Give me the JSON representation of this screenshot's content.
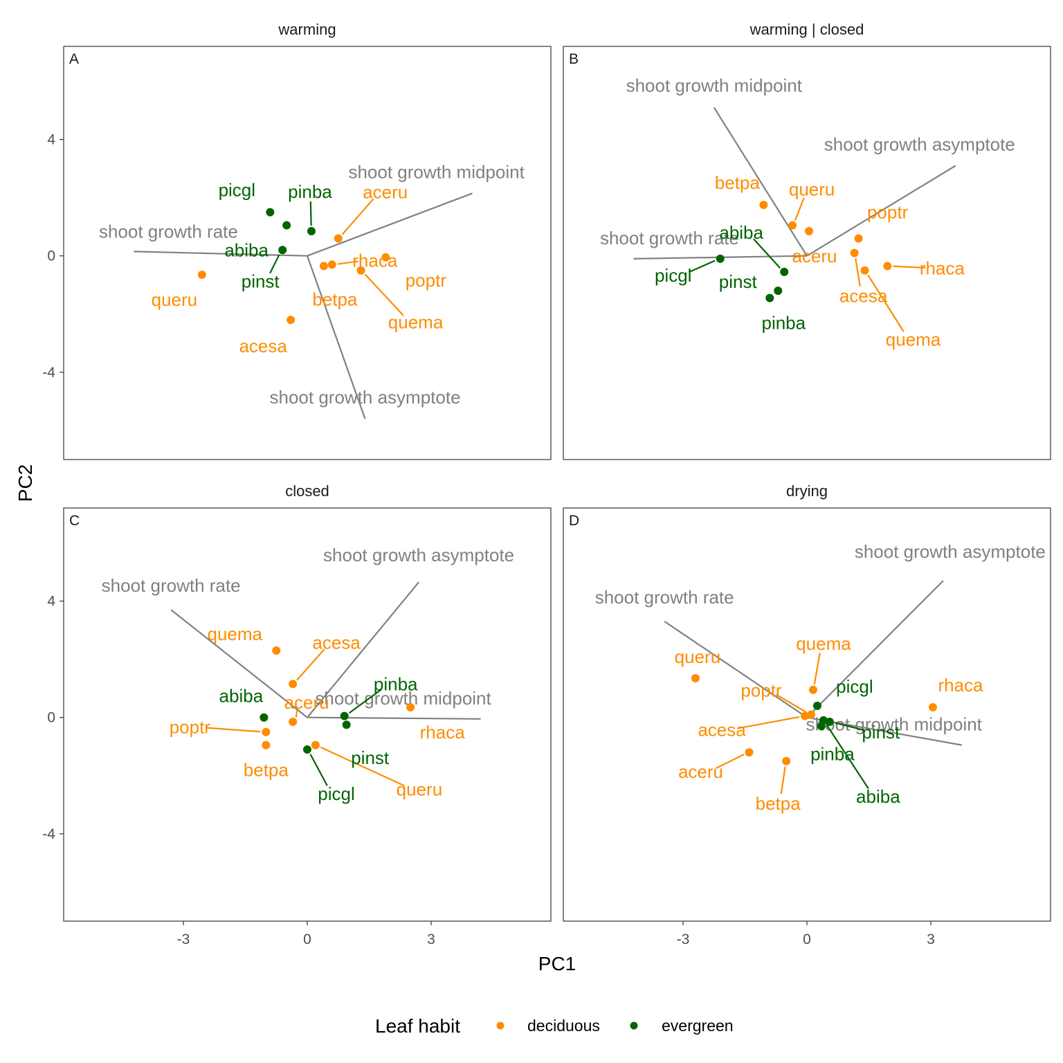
{
  "colors": {
    "deciduous": "#FF8C00",
    "evergreen": "#006400",
    "vector": "#808080",
    "panel_border": "#333333"
  },
  "axes": {
    "xlabel": "PC1",
    "ylabel": "PC2",
    "xlim": [
      -5.9,
      5.9
    ],
    "ylim": [
      -7.0,
      7.2
    ],
    "xticks": [
      -3,
      0,
      3
    ],
    "yticks": [
      -4,
      0,
      4
    ]
  },
  "legend": {
    "title": "Leaf habit",
    "position": "bottom",
    "items": [
      "deciduous",
      "evergreen"
    ]
  },
  "chart_data": [
    {
      "type": "scatter",
      "panel": "A",
      "title": "warming",
      "vectors": [
        {
          "label": "shoot growth rate",
          "x": -4.2,
          "y": 0.15
        },
        {
          "label": "shoot growth midpoint",
          "x": 4.0,
          "y": 2.15
        },
        {
          "label": "shoot growth asymptote",
          "x": 1.4,
          "y": -5.6
        }
      ],
      "points": [
        {
          "label": "picgl",
          "habit": "evergreen",
          "x": -0.9,
          "y": 1.5
        },
        {
          "label": "pinba",
          "habit": "evergreen",
          "x": 0.1,
          "y": 0.85
        },
        {
          "label": "abiba",
          "habit": "evergreen",
          "x": -0.5,
          "y": 1.05
        },
        {
          "label": "pinst",
          "habit": "evergreen",
          "x": -0.6,
          "y": 0.2
        },
        {
          "label": "aceru",
          "habit": "deciduous",
          "x": 0.75,
          "y": 0.6
        },
        {
          "label": "rhaca",
          "habit": "deciduous",
          "x": 0.6,
          "y": -0.3
        },
        {
          "label": "betpa",
          "habit": "deciduous",
          "x": 0.4,
          "y": -0.35
        },
        {
          "label": "poptr",
          "habit": "deciduous",
          "x": 1.9,
          "y": -0.05
        },
        {
          "label": "quema",
          "habit": "deciduous",
          "x": 1.3,
          "y": -0.5
        },
        {
          "label": "queru",
          "habit": "deciduous",
          "x": -2.55,
          "y": -0.65
        },
        {
          "label": "acesa",
          "habit": "deciduous",
          "x": -0.4,
          "y": -2.2
        }
      ]
    },
    {
      "type": "scatter",
      "panel": "B",
      "title": "warming | closed",
      "vectors": [
        {
          "label": "shoot growth rate",
          "x": -4.2,
          "y": -0.1
        },
        {
          "label": "shoot growth midpoint",
          "x": -2.25,
          "y": 5.1
        },
        {
          "label": "shoot growth asymptote",
          "x": 3.6,
          "y": 3.1
        }
      ],
      "points": [
        {
          "label": "betpa",
          "habit": "deciduous",
          "x": -1.05,
          "y": 1.75
        },
        {
          "label": "queru",
          "habit": "deciduous",
          "x": -0.35,
          "y": 1.05
        },
        {
          "label": "aceru",
          "habit": "deciduous",
          "x": 0.05,
          "y": 0.85
        },
        {
          "label": "poptr",
          "habit": "deciduous",
          "x": 1.25,
          "y": 0.6
        },
        {
          "label": "acesa",
          "habit": "deciduous",
          "x": 1.15,
          "y": 0.1
        },
        {
          "label": "quema",
          "habit": "deciduous",
          "x": 1.4,
          "y": -0.5
        },
        {
          "label": "rhaca",
          "habit": "deciduous",
          "x": 1.95,
          "y": -0.35
        },
        {
          "label": "picgl",
          "habit": "evergreen",
          "x": -2.1,
          "y": -0.1
        },
        {
          "label": "abiba",
          "habit": "evergreen",
          "x": -0.55,
          "y": -0.55
        },
        {
          "label": "pinst",
          "habit": "evergreen",
          "x": -0.7,
          "y": -1.2
        },
        {
          "label": "pinba",
          "habit": "evergreen",
          "x": -0.9,
          "y": -1.45
        }
      ]
    },
    {
      "type": "scatter",
      "panel": "C",
      "title": "closed",
      "vectors": [
        {
          "label": "shoot growth rate",
          "x": -3.3,
          "y": 3.7
        },
        {
          "label": "shoot growth midpoint",
          "x": 4.2,
          "y": -0.05
        },
        {
          "label": "shoot growth asymptote",
          "x": 2.7,
          "y": 4.65
        }
      ],
      "points": [
        {
          "label": "quema",
          "habit": "deciduous",
          "x": -0.75,
          "y": 2.3
        },
        {
          "label": "acesa",
          "habit": "deciduous",
          "x": -0.35,
          "y": 1.15
        },
        {
          "label": "aceru",
          "habit": "deciduous",
          "x": -0.35,
          "y": -0.15
        },
        {
          "label": "rhaca",
          "habit": "deciduous",
          "x": 2.5,
          "y": 0.35
        },
        {
          "label": "poptr",
          "habit": "deciduous",
          "x": -1.0,
          "y": -0.5
        },
        {
          "label": "betpa",
          "habit": "deciduous",
          "x": -1.0,
          "y": -0.95
        },
        {
          "label": "queru",
          "habit": "deciduous",
          "x": 0.2,
          "y": -0.95
        },
        {
          "label": "abiba",
          "habit": "evergreen",
          "x": -1.05,
          "y": 0.0
        },
        {
          "label": "pinba",
          "habit": "evergreen",
          "x": 0.9,
          "y": 0.05
        },
        {
          "label": "pinst",
          "habit": "evergreen",
          "x": 0.95,
          "y": -0.25
        },
        {
          "label": "picgl",
          "habit": "evergreen",
          "x": 0.0,
          "y": -1.1
        }
      ]
    },
    {
      "type": "scatter",
      "panel": "D",
      "title": "drying",
      "vectors": [
        {
          "label": "shoot growth rate",
          "x": -3.45,
          "y": 3.3
        },
        {
          "label": "shoot growth midpoint",
          "x": 3.75,
          "y": -0.95
        },
        {
          "label": "shoot growth asymptote",
          "x": 3.3,
          "y": 4.7
        }
      ],
      "points": [
        {
          "label": "queru",
          "habit": "deciduous",
          "x": -2.7,
          "y": 1.35
        },
        {
          "label": "quema",
          "habit": "deciduous",
          "x": 0.15,
          "y": 0.95
        },
        {
          "label": "poptr",
          "habit": "deciduous",
          "x": 0.1,
          "y": 0.1
        },
        {
          "label": "acesa",
          "habit": "deciduous",
          "x": -0.05,
          "y": 0.05
        },
        {
          "label": "rhaca",
          "habit": "deciduous",
          "x": 3.05,
          "y": 0.35
        },
        {
          "label": "aceru",
          "habit": "deciduous",
          "x": -1.4,
          "y": -1.2
        },
        {
          "label": "betpa",
          "habit": "deciduous",
          "x": -0.5,
          "y": -1.5
        },
        {
          "label": "picgl",
          "habit": "evergreen",
          "x": 0.25,
          "y": 0.4
        },
        {
          "label": "pinst",
          "habit": "evergreen",
          "x": 0.55,
          "y": -0.15
        },
        {
          "label": "pinba",
          "habit": "evergreen",
          "x": 0.35,
          "y": -0.3
        },
        {
          "label": "abiba",
          "habit": "evergreen",
          "x": 0.4,
          "y": -0.1
        }
      ]
    }
  ]
}
